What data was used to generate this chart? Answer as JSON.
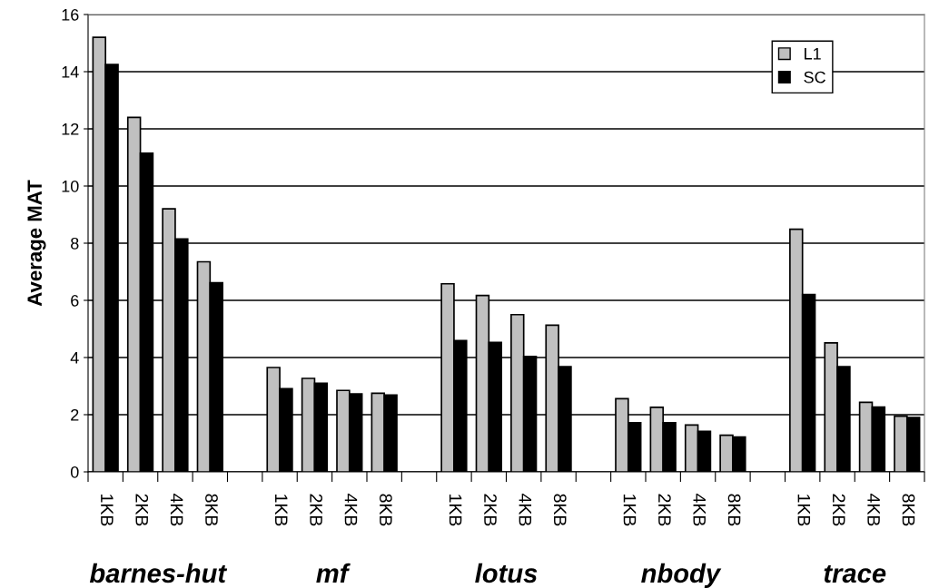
{
  "chart_data": {
    "type": "bar",
    "ylabel": "Average MAT",
    "categories": [
      "1KB",
      "2KB",
      "4KB",
      "8KB",
      null,
      "1KB",
      "2KB",
      "4KB",
      "8KB",
      null,
      "1KB",
      "2KB",
      "4KB",
      "8KB",
      null,
      "1KB",
      "2KB",
      "4KB",
      "8KB",
      null,
      "1KB",
      "2KB",
      "4KB",
      "8KB"
    ],
    "series": [
      {
        "name": "L1",
        "color": "#c0c0c0",
        "values": [
          15.2,
          12.4,
          9.2,
          7.35,
          null,
          3.65,
          3.27,
          2.85,
          2.75,
          null,
          6.58,
          6.17,
          5.5,
          5.13,
          null,
          2.56,
          2.26,
          1.64,
          1.28,
          null,
          8.49,
          4.51,
          2.43,
          1.95
        ]
      },
      {
        "name": "SC",
        "color": "#000000",
        "values": [
          14.25,
          11.15,
          8.15,
          6.62,
          null,
          2.91,
          3.1,
          2.73,
          2.69,
          null,
          4.59,
          4.53,
          4.04,
          3.68,
          null,
          1.72,
          1.72,
          1.42,
          1.22,
          null,
          6.2,
          3.68,
          2.27,
          1.9
        ]
      }
    ],
    "annotations": [
      "barnes-hut",
      "mf",
      "lotus",
      "nbody",
      "trace"
    ],
    "ylim": [
      0,
      16
    ],
    "yticks": [
      0,
      2,
      4,
      6,
      8,
      10,
      12,
      14,
      16
    ],
    "grid": "y",
    "legend": "top right"
  }
}
